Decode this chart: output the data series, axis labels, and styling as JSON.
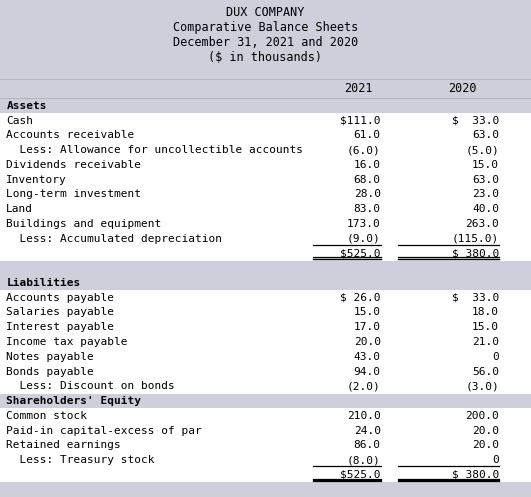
{
  "title_lines": [
    "DUX COMPANY",
    "Comparative Balance Sheets",
    "December 31, 2021 and 2020",
    "($ in thousands)"
  ],
  "header_bg": "#cdd0db",
  "body_bg": "#ffffff",
  "font_family": "monospace",
  "rows": [
    {
      "label": "Assets",
      "v2021": "",
      "v2020": "",
      "bold": true,
      "section_header": true
    },
    {
      "label": "Cash",
      "v2021": "$111.0",
      "v2020": "$  33.0",
      "bold": false
    },
    {
      "label": "Accounts receivable",
      "v2021": "61.0",
      "v2020": "63.0",
      "bold": false
    },
    {
      "label": "  Less: Allowance for uncollectible accounts",
      "v2021": "(6.0)",
      "v2020": "(5.0)",
      "bold": false
    },
    {
      "label": "Dividends receivable",
      "v2021": "16.0",
      "v2020": "15.0",
      "bold": false
    },
    {
      "label": "Inventory",
      "v2021": "68.0",
      "v2020": "63.0",
      "bold": false
    },
    {
      "label": "Long-term investment",
      "v2021": "28.0",
      "v2020": "23.0",
      "bold": false
    },
    {
      "label": "Land",
      "v2021": "83.0",
      "v2020": "40.0",
      "bold": false
    },
    {
      "label": "Buildings and equipment",
      "v2021": "173.0",
      "v2020": "263.0",
      "bold": false
    },
    {
      "label": "  Less: Accumulated depreciation",
      "v2021": "(9.0)",
      "v2020": "(115.0)",
      "bold": false,
      "underline": true
    },
    {
      "label": "",
      "v2021": "$525.0",
      "v2020": "$ 380.0",
      "bold": false,
      "double_underline": true
    },
    {
      "label": "",
      "v2021": "",
      "v2020": "",
      "bold": false,
      "spacer": true
    },
    {
      "label": "Liabilities",
      "v2021": "",
      "v2020": "",
      "bold": true,
      "section_header": true
    },
    {
      "label": "Accounts payable",
      "v2021": "$ 26.0",
      "v2020": "$  33.0",
      "bold": false
    },
    {
      "label": "Salaries payable",
      "v2021": "15.0",
      "v2020": "18.0",
      "bold": false
    },
    {
      "label": "Interest payable",
      "v2021": "17.0",
      "v2020": "15.0",
      "bold": false
    },
    {
      "label": "Income tax payable",
      "v2021": "20.0",
      "v2020": "21.0",
      "bold": false
    },
    {
      "label": "Notes payable",
      "v2021": "43.0",
      "v2020": "0",
      "bold": false
    },
    {
      "label": "Bonds payable",
      "v2021": "94.0",
      "v2020": "56.0",
      "bold": false
    },
    {
      "label": "  Less: Discount on bonds",
      "v2021": "(2.0)",
      "v2020": "(3.0)",
      "bold": false
    },
    {
      "label": "Shareholders' Equity",
      "v2021": "",
      "v2020": "",
      "bold": true,
      "section_header": true
    },
    {
      "label": "Common stock",
      "v2021": "210.0",
      "v2020": "200.0",
      "bold": false
    },
    {
      "label": "Paid-in capital-excess of par",
      "v2021": "24.0",
      "v2020": "20.0",
      "bold": false
    },
    {
      "label": "Retained earnings",
      "v2021": "86.0",
      "v2020": "20.0",
      "bold": false
    },
    {
      "label": "  Less: Treasury stock",
      "v2021": "(8.0)",
      "v2020": "0",
      "bold": false,
      "underline": true
    },
    {
      "label": "",
      "v2021": "$525.0",
      "v2020": "$ 380.0",
      "bold": false,
      "double_underline": true
    },
    {
      "label": "",
      "v2021": "",
      "v2020": "",
      "bold": false,
      "spacer": true,
      "last": true
    }
  ]
}
